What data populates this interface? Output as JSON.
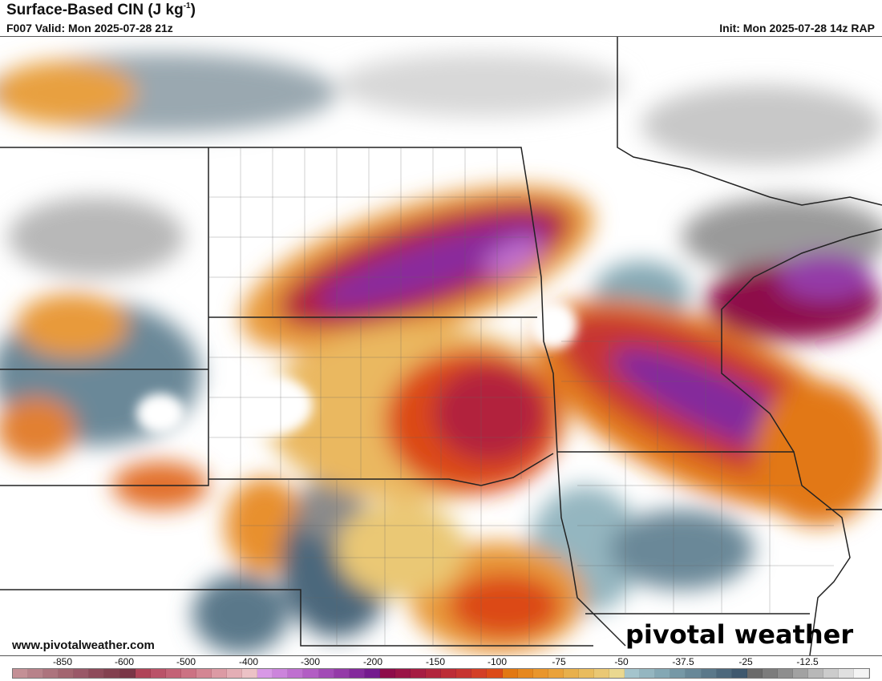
{
  "header": {
    "title": "Surface-Based CIN (J kg",
    "title_sup": "-1",
    "title_end": ")",
    "valid": "F007 Valid: Mon 2025-07-28 21z",
    "init": "Init: Mon 2025-07-28 14z RAP"
  },
  "footer": {
    "website": "www.pivotalweather.com",
    "logo": "pivotal weather"
  },
  "colorbar": {
    "ticks": [
      "-850",
      "-600",
      "-500",
      "-400",
      "-300",
      "-200",
      "-150",
      "-100",
      "-75",
      "-50",
      "-37.5",
      "-25",
      "-12.5"
    ],
    "colors": [
      "#c49096",
      "#b8828a",
      "#ad737d",
      "#a36570",
      "#9a5868",
      "#8e4a5a",
      "#83404f",
      "#7a3646",
      "#b04458",
      "#ba5268",
      "#c46276",
      "#cc7283",
      "#d48693",
      "#dc9aa4",
      "#e4aeb5",
      "#ecc2c6",
      "#d898e6",
      "#cc84dc",
      "#bf70d0",
      "#b25dc4",
      "#a24ab6",
      "#943aa8",
      "#842a9c",
      "#741a8e",
      "#8e0c4a",
      "#9a1446",
      "#a61c42",
      "#b2243c",
      "#bd2c36",
      "#c73430",
      "#d33e26",
      "#dc4a18",
      "#e27812",
      "#e6881e",
      "#e9962c",
      "#eaa23a",
      "#e8b04c",
      "#e9bc5e",
      "#eac874",
      "#ead890",
      "#a4c4cc",
      "#94b6c0",
      "#84a8b4",
      "#7698a6",
      "#688898",
      "#5a788a",
      "#4c687c",
      "#3e586e",
      "#6a6a6a",
      "#7c7c7c",
      "#8e8e8e",
      "#a2a2a2",
      "#b8b8b8",
      "#cccccc",
      "#e0e0e0",
      "#f4f4f4"
    ]
  }
}
